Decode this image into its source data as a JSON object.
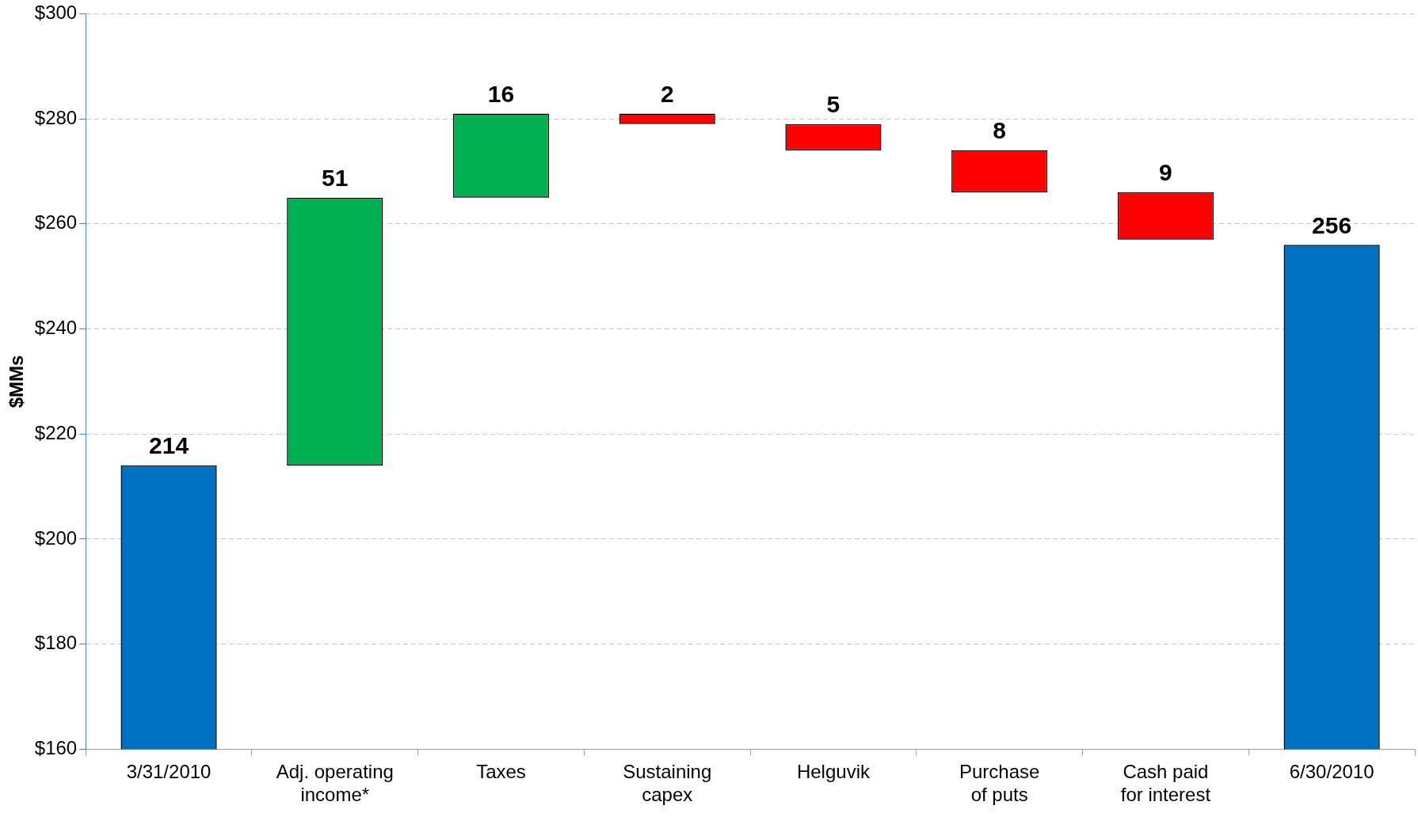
{
  "chart_data": {
    "type": "bar",
    "ylabel": "$MMs",
    "categories": [
      "3/31/2010",
      "Adj. operating income*",
      "Taxes",
      "Sustaining capex",
      "Helguvik",
      "Purchase of puts",
      "Cash paid for interest",
      "6/30/2010"
    ],
    "values": [
      214,
      51,
      16,
      -2,
      -5,
      -8,
      -9,
      256
    ],
    "base": [
      null,
      214,
      265,
      281,
      279,
      274,
      266,
      null
    ],
    "colors": [
      "#0070c0",
      "#00b050",
      "#00b050",
      "#ff0000",
      "#ff0000",
      "#ff0000",
      "#ff0000",
      "#0070c0"
    ],
    "value_labels": [
      "214",
      "51",
      "16",
      "2",
      "5",
      "8",
      "9",
      "256"
    ],
    "ylim": [
      160,
      300
    ],
    "yticks": [
      {
        "value": 160,
        "label": "$160"
      },
      {
        "value": 180,
        "label": "$180"
      },
      {
        "value": 200,
        "label": "$200"
      },
      {
        "value": 220,
        "label": "$220"
      },
      {
        "value": 240,
        "label": "$240"
      },
      {
        "value": 260,
        "label": "$260"
      },
      {
        "value": 280,
        "label": "$280"
      },
      {
        "value": 300,
        "label": "$300"
      }
    ],
    "grid": "y",
    "legend": false
  }
}
